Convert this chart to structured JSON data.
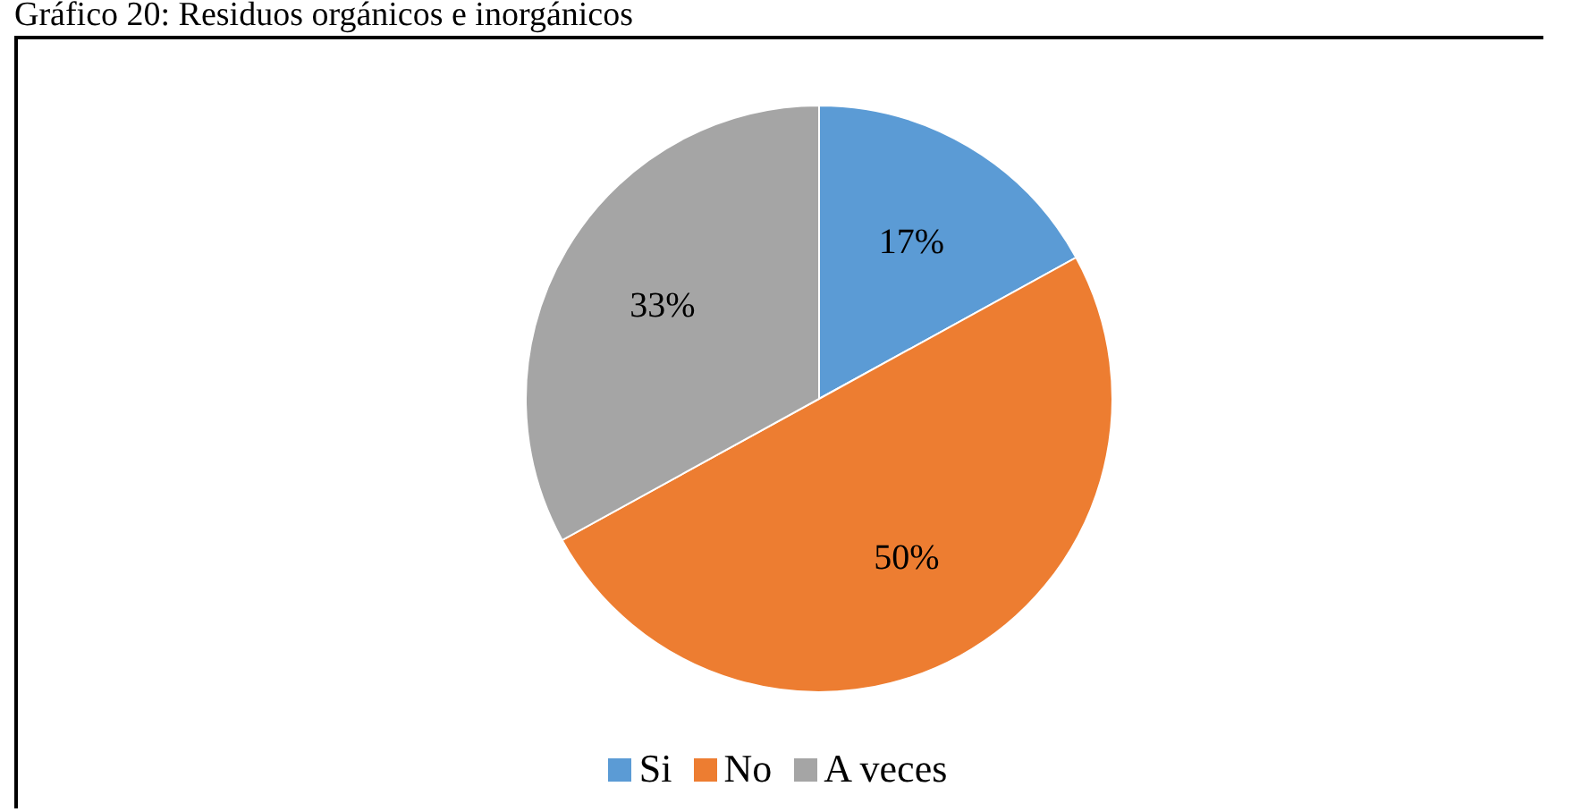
{
  "chart_data": {
    "type": "pie",
    "title": "Gráfico 20: Residuos orgánicos e inorgánicos",
    "categories": [
      "Si",
      "No",
      "A veces"
    ],
    "values": [
      17,
      50,
      33
    ],
    "value_labels": [
      "17%",
      "50%",
      "33%"
    ],
    "colors": [
      "#5b9bd5",
      "#ed7d31",
      "#a5a5a5"
    ],
    "legend": "bottom"
  }
}
